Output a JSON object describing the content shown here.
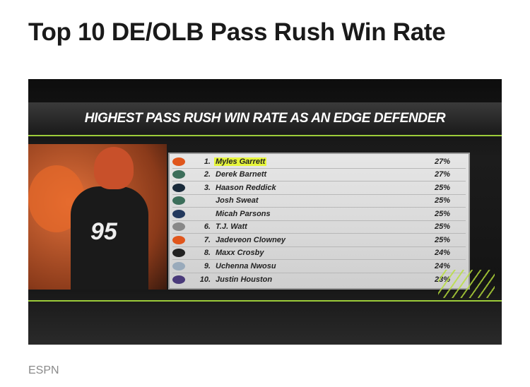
{
  "article": {
    "title": "Top 10 DE/OLB Pass Rush Win Rate",
    "caption": "ESPN"
  },
  "graphic": {
    "banner": "HIGHEST PASS RUSH WIN RATE AS AN EDGE DEFENDER",
    "jersey_number": "95",
    "highlight_color": "#e6f53a",
    "rows": [
      {
        "rank": "1.",
        "name": "Myles Garrett",
        "rate": "27%",
        "team_icon": "browns-helmet-icon",
        "color": "#e0561c"
      },
      {
        "rank": "2.",
        "name": "Derek Barnett",
        "rate": "27%",
        "team_icon": "eagles-icon",
        "color": "#3c6e5a"
      },
      {
        "rank": "3.",
        "name": "Haason Reddick",
        "rate": "25%",
        "team_icon": "panthers-icon",
        "color": "#1a2a3a"
      },
      {
        "rank": "",
        "name": "Josh Sweat",
        "rate": "25%",
        "team_icon": "eagles-icon",
        "color": "#3c6e5a"
      },
      {
        "rank": "",
        "name": "Micah Parsons",
        "rate": "25%",
        "team_icon": "cowboys-star-icon",
        "color": "#23395d"
      },
      {
        "rank": "6.",
        "name": "T.J. Watt",
        "rate": "25%",
        "team_icon": "steelers-icon",
        "color": "#888"
      },
      {
        "rank": "7.",
        "name": "Jadeveon Clowney",
        "rate": "25%",
        "team_icon": "browns-helmet-icon",
        "color": "#e0561c"
      },
      {
        "rank": "8.",
        "name": "Maxx Crosby",
        "rate": "24%",
        "team_icon": "raiders-shield-icon",
        "color": "#222"
      },
      {
        "rank": "9.",
        "name": "Uchenna Nwosu",
        "rate": "24%",
        "team_icon": "chargers-bolt-icon",
        "color": "#9ab"
      },
      {
        "rank": "10.",
        "name": "Justin Houston",
        "rate": "23%",
        "team_icon": "ravens-icon",
        "color": "#4a3a7a"
      }
    ]
  }
}
